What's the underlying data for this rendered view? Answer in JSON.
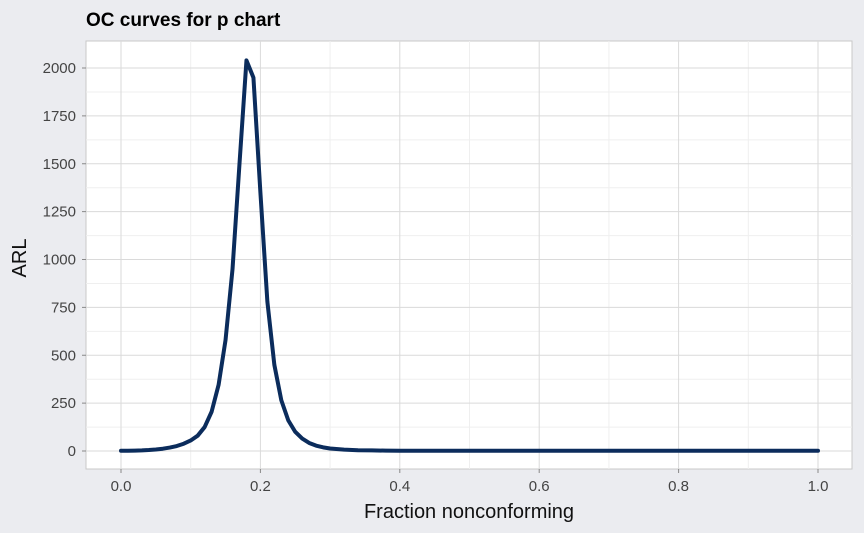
{
  "chart_data": {
    "type": "line",
    "title": "OC curves for p chart",
    "xlabel": "Fraction nonconforming",
    "ylabel": "ARL",
    "xlim": [
      0.0,
      1.0
    ],
    "ylim": [
      0,
      2000
    ],
    "x_ticks": [
      "0.0",
      "0.2",
      "0.4",
      "0.6",
      "0.8",
      "1.0"
    ],
    "y_ticks": [
      "0",
      "250",
      "500",
      "750",
      "1000",
      "1250",
      "1500",
      "1750",
      "2000"
    ],
    "grid": true,
    "legend": "none",
    "line_color": "#0B2C5C",
    "series": [
      {
        "x": [
          0.0,
          0.01,
          0.02,
          0.03,
          0.04,
          0.05,
          0.06,
          0.07,
          0.08,
          0.09,
          0.1,
          0.11,
          0.12,
          0.13,
          0.14,
          0.15,
          0.16,
          0.17,
          0.18,
          0.19,
          0.2,
          0.21,
          0.22,
          0.23,
          0.24,
          0.25,
          0.26,
          0.27,
          0.28,
          0.29,
          0.3,
          0.32,
          0.34,
          0.36,
          0.38,
          0.4,
          0.45,
          0.5,
          0.6,
          0.7,
          0.8,
          0.9,
          1.0
        ],
        "y": [
          1,
          1,
          2,
          3,
          5,
          8,
          12,
          18,
          26,
          38,
          55,
          80,
          125,
          205,
          345,
          580,
          950,
          1500,
          2040,
          1950,
          1350,
          780,
          450,
          265,
          160,
          100,
          65,
          42,
          28,
          19,
          13,
          7,
          4,
          3,
          2,
          1,
          1,
          1,
          1,
          1,
          1,
          1,
          1
        ]
      }
    ]
  },
  "colors": {
    "page_background": "#EBECF0",
    "panel_background": "#FFFFFF",
    "grid_major": "#DADADA",
    "grid_minor": "#EFEFEF",
    "panel_border": "#C8C8C8"
  }
}
